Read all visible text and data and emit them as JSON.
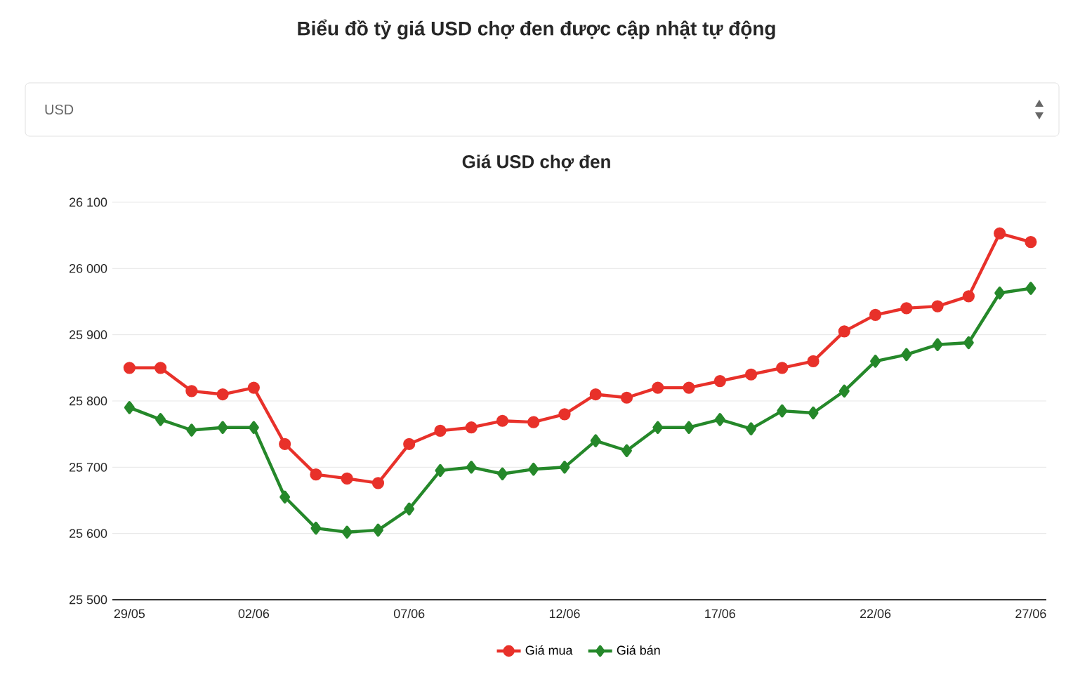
{
  "chart_data": {
    "type": "line",
    "title": "Biểu đồ tỷ giá USD chợ đen được cập nhật tự động",
    "subtitle": "Giá USD chợ đen",
    "annotations": [
      "USD"
    ],
    "categories": [
      "29/05",
      null,
      null,
      null,
      "02/06",
      null,
      null,
      null,
      null,
      "07/06",
      null,
      null,
      null,
      null,
      "12/06",
      null,
      null,
      null,
      null,
      "17/06",
      null,
      null,
      null,
      null,
      "22/06",
      null,
      null,
      null,
      null,
      "27/06"
    ],
    "series": [
      {
        "name": "Giá mua",
        "color": "#e8312a",
        "marker": "circle",
        "values": [
          25850,
          25850,
          25815,
          25810,
          25820,
          25735,
          25689,
          25683,
          25676,
          25735,
          25755,
          25760,
          25770,
          25768,
          25780,
          25810,
          25805,
          25820,
          25820,
          25830,
          25840,
          25850,
          25860,
          25905,
          25930,
          25940,
          25943,
          25958,
          26053,
          26040
        ]
      },
      {
        "name": "Giá bán",
        "color": "#25882a",
        "marker": "diamond",
        "values": [
          25790,
          25772,
          25756,
          25760,
          25760,
          25655,
          25608,
          25602,
          25605,
          25637,
          25695,
          25700,
          25690,
          25697,
          25700,
          25740,
          25725,
          25760,
          25760,
          25772,
          25758,
          25785,
          25782,
          25815,
          25860,
          25870,
          25885,
          25888,
          25963,
          25970
        ]
      }
    ],
    "ylim": [
      25500,
      26100
    ],
    "yticks": [
      {
        "value": 25500,
        "label": "25 500"
      },
      {
        "value": 25600,
        "label": "25 600"
      },
      {
        "value": 25700,
        "label": "25 700"
      },
      {
        "value": 25800,
        "label": "25 800"
      },
      {
        "value": 25900,
        "label": "25 900"
      },
      {
        "value": 26000,
        "label": "26 000"
      },
      {
        "value": 26100,
        "label": "26 100"
      }
    ],
    "grid": "y",
    "legend": "bottom",
    "line_style": "solid"
  }
}
